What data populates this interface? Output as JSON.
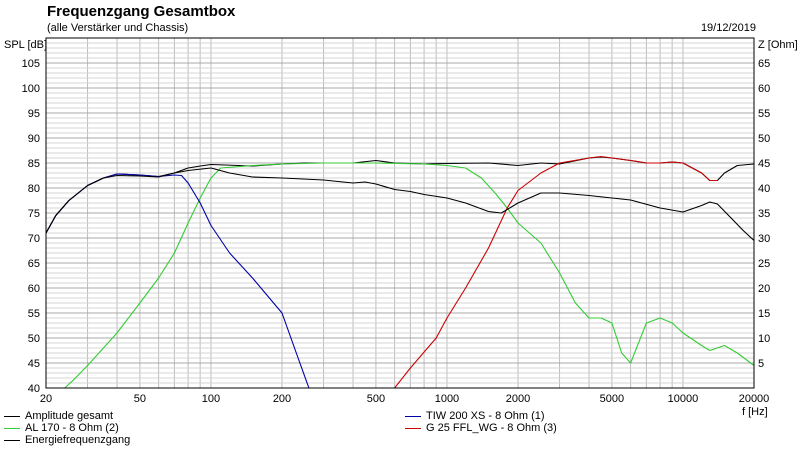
{
  "header": {
    "title": "Frequenzgang Gesamtbox",
    "subtitle": "(alle Verstärker und Chassis)",
    "date": "19/12/2019"
  },
  "chart_data": {
    "type": "line",
    "title": "Frequenzgang Gesamtbox",
    "subtitle": "(alle Verstärker und Chassis)",
    "ylabel": "SPL [dB]",
    "y2label": "Z [Ohm]",
    "xlabel": "f [Hz]",
    "xscale": "log",
    "xlim": [
      20,
      20000
    ],
    "ylim": [
      40,
      110
    ],
    "y2lim": [
      0,
      70
    ],
    "grid": true,
    "x_ticks": [
      {
        "v": 20,
        "label": "20"
      },
      {
        "v": 50,
        "label": "50"
      },
      {
        "v": 100,
        "label": "100"
      },
      {
        "v": 200,
        "label": "200"
      },
      {
        "v": 500,
        "label": "500"
      },
      {
        "v": 1000,
        "label": "1000"
      },
      {
        "v": 2000,
        "label": "2000"
      },
      {
        "v": 5000,
        "label": "5000"
      },
      {
        "v": 10000,
        "label": "10000"
      },
      {
        "v": 20000,
        "label": "20000"
      }
    ],
    "y_ticks": [
      {
        "v": 40,
        "label": "40"
      },
      {
        "v": 45,
        "label": "45"
      },
      {
        "v": 50,
        "label": "50"
      },
      {
        "v": 55,
        "label": "55"
      },
      {
        "v": 60,
        "label": "60"
      },
      {
        "v": 65,
        "label": "65"
      },
      {
        "v": 70,
        "label": "70"
      },
      {
        "v": 75,
        "label": "75"
      },
      {
        "v": 80,
        "label": "80"
      },
      {
        "v": 85,
        "label": "85"
      },
      {
        "v": 90,
        "label": "90"
      },
      {
        "v": 95,
        "label": "95"
      },
      {
        "v": 100,
        "label": "100"
      },
      {
        "v": 105,
        "label": "105"
      }
    ],
    "y2_ticks": [
      {
        "v": 5,
        "label": "5"
      },
      {
        "v": 10,
        "label": "10"
      },
      {
        "v": 15,
        "label": "15"
      },
      {
        "v": 20,
        "label": "20"
      },
      {
        "v": 25,
        "label": "25"
      },
      {
        "v": 30,
        "label": "30"
      },
      {
        "v": 35,
        "label": "35"
      },
      {
        "v": 40,
        "label": "40"
      },
      {
        "v": 45,
        "label": "45"
      },
      {
        "v": 50,
        "label": "50"
      },
      {
        "v": 55,
        "label": "55"
      },
      {
        "v": 60,
        "label": "60"
      },
      {
        "v": 65,
        "label": "65"
      }
    ],
    "legend_position": "bottom",
    "series": [
      {
        "name": "Amplitude gesamt",
        "color": "#000000",
        "points": [
          [
            20,
            71
          ],
          [
            22,
            74.5
          ],
          [
            25,
            77.5
          ],
          [
            30,
            80.5
          ],
          [
            35,
            82
          ],
          [
            40,
            82.8
          ],
          [
            50,
            82.6
          ],
          [
            60,
            82.3
          ],
          [
            70,
            83
          ],
          [
            80,
            84
          ],
          [
            90,
            84.4
          ],
          [
            100,
            84.7
          ],
          [
            150,
            84.4
          ],
          [
            200,
            84.8
          ],
          [
            250,
            85
          ],
          [
            300,
            85
          ],
          [
            400,
            85
          ],
          [
            500,
            85.5
          ],
          [
            600,
            85
          ],
          [
            800,
            84.8
          ],
          [
            1000,
            84.9
          ],
          [
            1500,
            85
          ],
          [
            2000,
            84.5
          ],
          [
            2500,
            85
          ],
          [
            3000,
            84.8
          ],
          [
            4000,
            86
          ],
          [
            4500,
            86.2
          ],
          [
            5000,
            86
          ],
          [
            6000,
            85.5
          ],
          [
            7000,
            85
          ],
          [
            8000,
            85
          ],
          [
            9000,
            85.2
          ],
          [
            10000,
            85
          ],
          [
            12000,
            83
          ],
          [
            13000,
            81.5
          ],
          [
            14000,
            81.5
          ],
          [
            15000,
            83
          ],
          [
            17000,
            84.5
          ],
          [
            20000,
            84.8
          ]
        ]
      },
      {
        "name": "AL 170 - 8 Ohm (2)",
        "color": "#33cc33",
        "points": [
          [
            20,
            40
          ],
          [
            24,
            40
          ],
          [
            26,
            41.5
          ],
          [
            30,
            44.5
          ],
          [
            40,
            51
          ],
          [
            50,
            57
          ],
          [
            60,
            62
          ],
          [
            70,
            67
          ],
          [
            80,
            73
          ],
          [
            90,
            78
          ],
          [
            100,
            82
          ],
          [
            110,
            84
          ],
          [
            150,
            84.5
          ],
          [
            200,
            84.8
          ],
          [
            300,
            85
          ],
          [
            500,
            85
          ],
          [
            800,
            84.8
          ],
          [
            1000,
            84.5
          ],
          [
            1200,
            84
          ],
          [
            1400,
            82
          ],
          [
            1600,
            79
          ],
          [
            1800,
            76
          ],
          [
            2000,
            73
          ],
          [
            2500,
            69
          ],
          [
            3000,
            63
          ],
          [
            3500,
            57
          ],
          [
            4000,
            54
          ],
          [
            4500,
            54
          ],
          [
            5000,
            53
          ],
          [
            5500,
            47
          ],
          [
            6000,
            45
          ],
          [
            7000,
            53
          ],
          [
            8000,
            54
          ],
          [
            9000,
            53
          ],
          [
            10000,
            51
          ],
          [
            12000,
            48.5
          ],
          [
            13000,
            47.5
          ],
          [
            15000,
            48.5
          ],
          [
            17000,
            47
          ],
          [
            20000,
            44.5
          ]
        ]
      },
      {
        "name": "TIW 200 XS - 8 Ohm (1)",
        "color": "#0000aa",
        "points": [
          [
            20,
            71
          ],
          [
            22,
            74.5
          ],
          [
            25,
            77.5
          ],
          [
            30,
            80.5
          ],
          [
            35,
            82
          ],
          [
            40,
            82.8
          ],
          [
            50,
            82.6
          ],
          [
            60,
            82.3
          ],
          [
            70,
            82.6
          ],
          [
            75,
            82.5
          ],
          [
            80,
            81
          ],
          [
            90,
            77
          ],
          [
            100,
            72.5
          ],
          [
            120,
            67
          ],
          [
            150,
            62
          ],
          [
            200,
            55
          ],
          [
            230,
            47
          ],
          [
            260,
            40
          ]
        ]
      },
      {
        "name": "G 25 FFL_WG - 8 Ohm (3)",
        "color": "#cc0000",
        "points": [
          [
            600,
            40
          ],
          [
            700,
            44
          ],
          [
            900,
            50
          ],
          [
            1000,
            54
          ],
          [
            1200,
            60
          ],
          [
            1500,
            68
          ],
          [
            1800,
            76
          ],
          [
            2000,
            79.5
          ],
          [
            2500,
            83
          ],
          [
            3000,
            85
          ],
          [
            4000,
            86
          ],
          [
            4500,
            86.3
          ],
          [
            5000,
            86
          ],
          [
            6000,
            85.5
          ],
          [
            7000,
            85
          ],
          [
            8000,
            85
          ],
          [
            9000,
            85.2
          ],
          [
            10000,
            85
          ],
          [
            12000,
            83
          ],
          [
            13000,
            81.5
          ],
          [
            14000,
            81.5
          ]
        ]
      },
      {
        "name": "Energiefrequenzgang",
        "color": "#000000",
        "points": [
          [
            20,
            71
          ],
          [
            22,
            74.5
          ],
          [
            25,
            77.5
          ],
          [
            30,
            80.5
          ],
          [
            35,
            82
          ],
          [
            40,
            82.5
          ],
          [
            50,
            82.4
          ],
          [
            60,
            82.2
          ],
          [
            70,
            83
          ],
          [
            80,
            83.5
          ],
          [
            100,
            84
          ],
          [
            120,
            83
          ],
          [
            150,
            82.2
          ],
          [
            200,
            82
          ],
          [
            300,
            81.6
          ],
          [
            400,
            81
          ],
          [
            450,
            81.2
          ],
          [
            500,
            80.8
          ],
          [
            600,
            79.7
          ],
          [
            700,
            79.3
          ],
          [
            800,
            78.7
          ],
          [
            1000,
            78
          ],
          [
            1200,
            77
          ],
          [
            1500,
            75.3
          ],
          [
            1700,
            75
          ],
          [
            2000,
            77
          ],
          [
            2500,
            79
          ],
          [
            3000,
            79
          ],
          [
            4000,
            78.5
          ],
          [
            5000,
            78
          ],
          [
            6000,
            77.6
          ],
          [
            8000,
            76
          ],
          [
            10000,
            75.2
          ],
          [
            12000,
            76.5
          ],
          [
            13000,
            77.2
          ],
          [
            14000,
            76.8
          ],
          [
            16000,
            74
          ],
          [
            18000,
            71.5
          ],
          [
            20000,
            69.5
          ]
        ]
      }
    ]
  },
  "legend": {
    "left": [
      {
        "label": "Amplitude gesamt",
        "color": "#000000"
      },
      {
        "label": "AL 170 - 8 Ohm (2)",
        "color": "#33cc33"
      },
      {
        "label": "Energiefrequenzgang",
        "color": "#000000"
      }
    ],
    "right": [
      {
        "label": "TIW 200 XS - 8 Ohm (1)",
        "color": "#0000aa"
      },
      {
        "label": "G 25 FFL_WG - 8 Ohm (3)",
        "color": "#cc0000"
      }
    ]
  }
}
